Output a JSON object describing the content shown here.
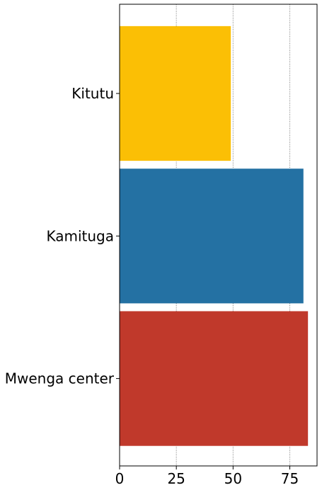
{
  "chart_data": {
    "type": "bar",
    "orientation": "horizontal",
    "categories": [
      "Kitutu",
      "Kamituga",
      "Mwenga center"
    ],
    "values": [
      49,
      81,
      83
    ],
    "colors": [
      "#fbbf05",
      "#2471a3",
      "#c0392b"
    ],
    "title": "",
    "xlabel": "",
    "ylabel": "",
    "xlim": [
      0,
      87
    ],
    "xticks": [
      0,
      25,
      50,
      75
    ],
    "grid": "x-dotted"
  }
}
